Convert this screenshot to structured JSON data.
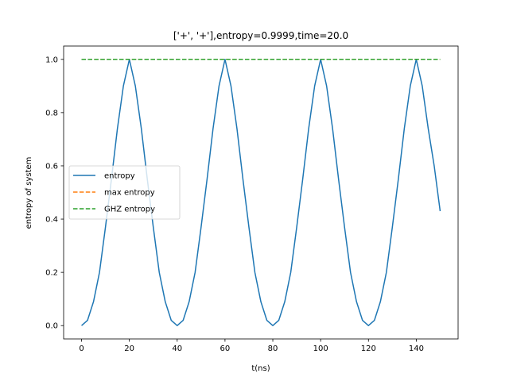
{
  "chart_data": {
    "type": "line",
    "title": "['+', '+'],entropy=0.9999,time=20.0",
    "xlabel": "t(ns)",
    "ylabel": "entropy of system",
    "xlim": [
      -7.5,
      157.5
    ],
    "ylim": [
      -0.05,
      1.05
    ],
    "xticks": [
      0,
      20,
      40,
      60,
      80,
      100,
      120,
      140
    ],
    "xtick_labels": [
      "0",
      "20",
      "40",
      "60",
      "80",
      "100",
      "120",
      "140"
    ],
    "yticks": [
      0.0,
      0.2,
      0.4,
      0.6,
      0.8,
      1.0
    ],
    "ytick_labels": [
      "0.0",
      "0.2",
      "0.4",
      "0.6",
      "0.8",
      "1.0"
    ],
    "grid": false,
    "legend": {
      "placement": "center-left"
    },
    "series": [
      {
        "name": "entropy",
        "color": "#1f77b4",
        "linestyle": "solid",
        "x": [
          0,
          2.5,
          5,
          7.5,
          10,
          12.5,
          15,
          17.5,
          20,
          22.5,
          25,
          27.5,
          30,
          32.5,
          35,
          37.5,
          40,
          42.5,
          45,
          47.5,
          50,
          52.5,
          55,
          57.5,
          60,
          62.5,
          65,
          67.5,
          70,
          72.5,
          75,
          77.5,
          80,
          82.5,
          85,
          87.5,
          90,
          92.5,
          95,
          97.5,
          100,
          102.5,
          105,
          107.5,
          110,
          112.5,
          115,
          117.5,
          120,
          122.5,
          125,
          127.5,
          130,
          132.5,
          135,
          137.5,
          140,
          142.5,
          145,
          147.5,
          150
        ],
        "y": [
          0.0,
          0.02,
          0.09,
          0.2,
          0.37,
          0.55,
          0.74,
          0.9,
          1.0,
          0.9,
          0.74,
          0.55,
          0.37,
          0.2,
          0.09,
          0.02,
          0.0,
          0.02,
          0.09,
          0.2,
          0.37,
          0.55,
          0.74,
          0.9,
          1.0,
          0.9,
          0.74,
          0.55,
          0.37,
          0.2,
          0.09,
          0.02,
          0.0,
          0.02,
          0.09,
          0.2,
          0.37,
          0.55,
          0.74,
          0.9,
          1.0,
          0.9,
          0.74,
          0.55,
          0.37,
          0.2,
          0.09,
          0.02,
          0.0,
          0.02,
          0.09,
          0.2,
          0.37,
          0.55,
          0.74,
          0.9,
          1.0,
          0.9,
          0.74,
          0.6,
          0.43
        ]
      },
      {
        "name": "max entropy",
        "color": "#ff7f0e",
        "linestyle": "dashed",
        "x": [
          0,
          150
        ],
        "y": [
          1.0,
          1.0
        ]
      },
      {
        "name": "GHZ entropy",
        "color": "#2ca02c",
        "linestyle": "dashed",
        "x": [
          0,
          150
        ],
        "y": [
          1.0,
          1.0
        ]
      }
    ]
  }
}
